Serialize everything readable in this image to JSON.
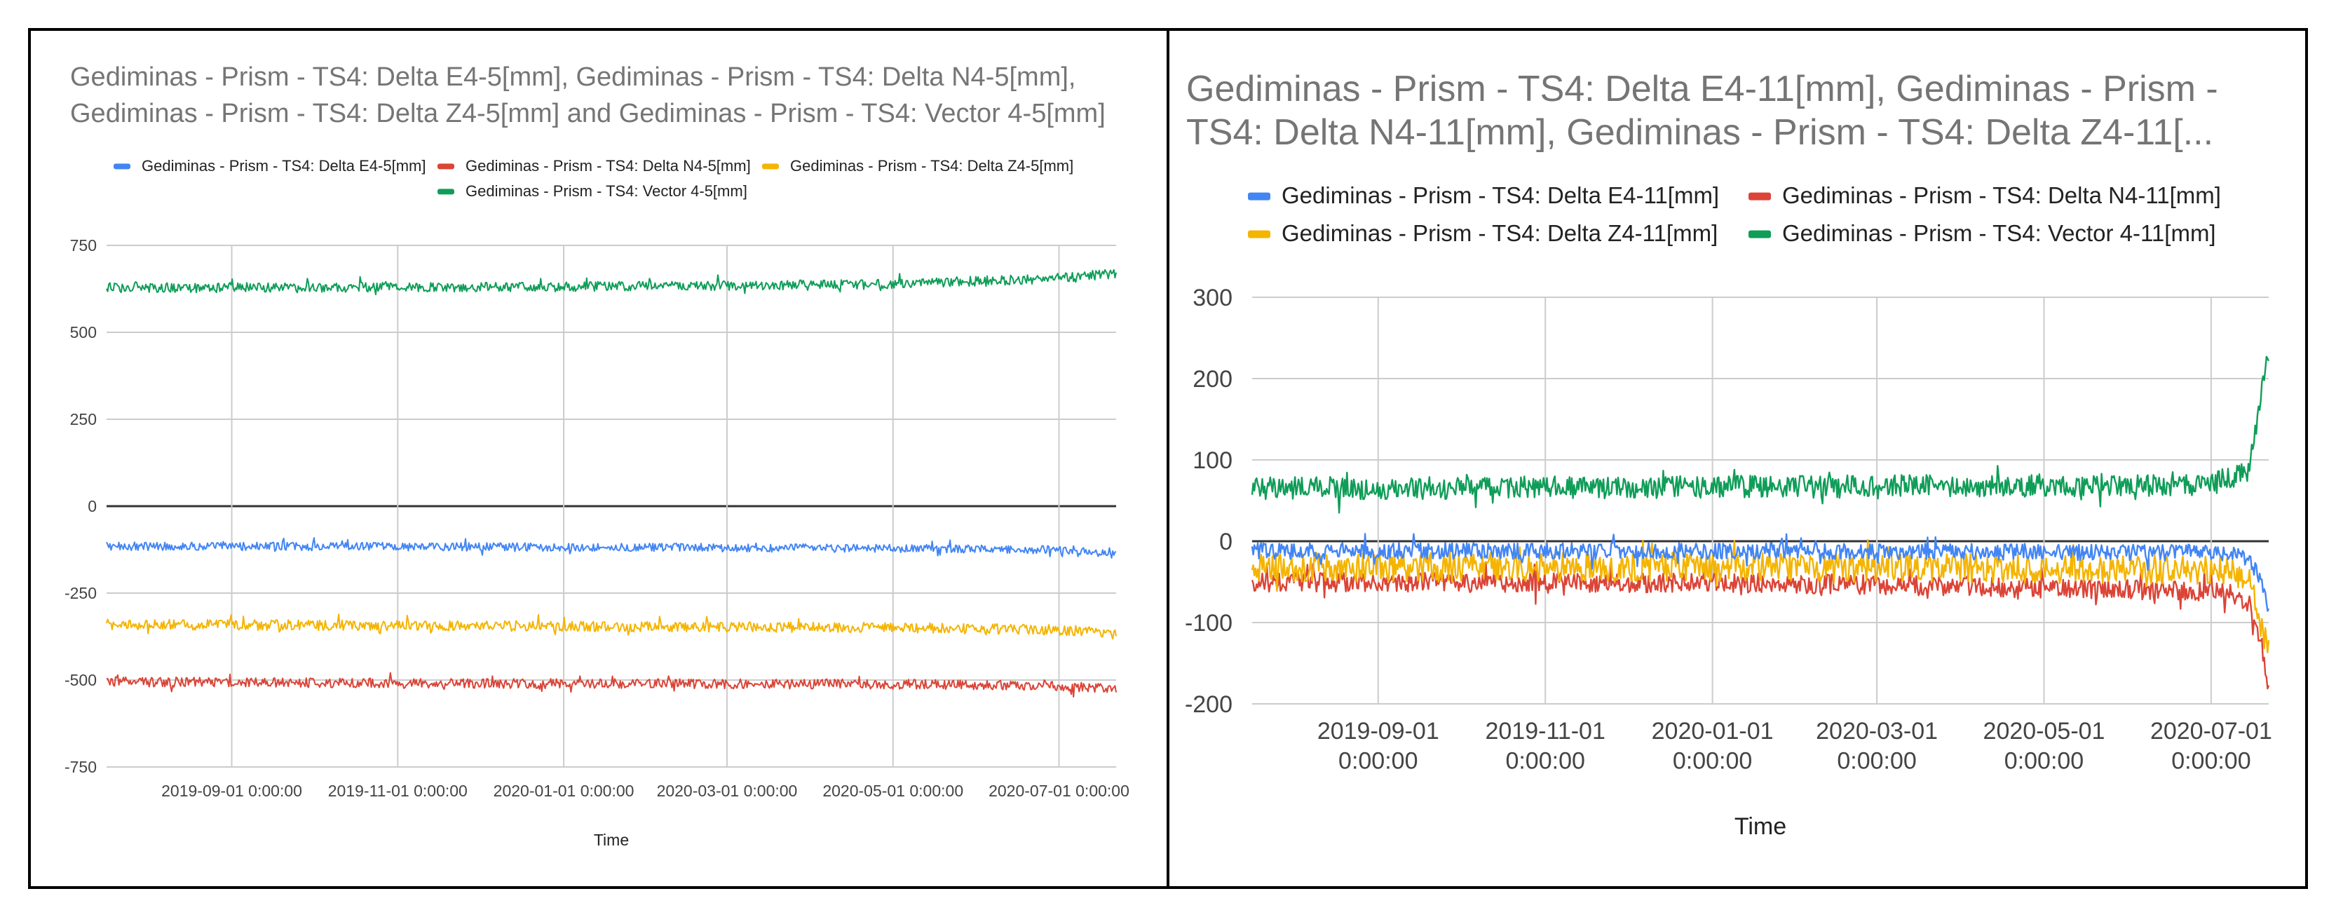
{
  "chart_data": [
    {
      "type": "line",
      "title_lines": [
        "Gediminas - Prism - TS4: Delta E4-5[mm], Gediminas - Prism - TS4: Delta N4-5[mm],",
        "Gediminas - Prism - TS4: Delta Z4-5[mm] and Gediminas - Prism - TS4: Vector 4-5[mm]"
      ],
      "xlabel": "Time",
      "ylabel": "",
      "ylim": [
        -750,
        750
      ],
      "yticks": [
        "750",
        "500",
        "250",
        "0",
        "-250",
        "-500",
        "-750"
      ],
      "ytick_values": [
        750,
        500,
        250,
        0,
        -250,
        -500,
        -750
      ],
      "xlim": [
        "2019-07-17",
        "2020-07-22"
      ],
      "xticks": [
        "2019-09-01 0:00:00",
        "2019-11-01 0:00:00",
        "2020-01-01 0:00:00",
        "2020-03-01 0:00:00",
        "2020-05-01 0:00:00",
        "2020-07-01 0:00:00"
      ],
      "xtick_days": [
        46,
        107,
        168,
        228,
        289,
        350
      ],
      "total_days": 371,
      "series": [
        {
          "name": "Gediminas - Prism - TS4: Delta E4-5[mm]",
          "color": "#4285F4",
          "points": [
            [
              0,
              -115
            ],
            [
              150,
              -117
            ],
            [
              300,
              -122
            ],
            [
              355,
              -126
            ],
            [
              371,
              -140
            ]
          ],
          "noise": 12
        },
        {
          "name": "Gediminas - Prism - TS4: Delta N4-5[mm]",
          "color": "#DB4437",
          "points": [
            [
              0,
              -505
            ],
            [
              150,
              -510
            ],
            [
              300,
              -512
            ],
            [
              355,
              -518
            ],
            [
              371,
              -525
            ]
          ],
          "noise": 14
        },
        {
          "name": "Gediminas - Prism - TS4: Delta Z4-5[mm]",
          "color": "#F4B400",
          "points": [
            [
              0,
              -340
            ],
            [
              150,
              -345
            ],
            [
              300,
              -350
            ],
            [
              355,
              -357
            ],
            [
              371,
              -370
            ]
          ],
          "noise": 15
        },
        {
          "name": "Gediminas - Prism - TS4: Vector 4-5[mm]",
          "color": "#0F9D58",
          "points": [
            [
              0,
              628
            ],
            [
              150,
              630
            ],
            [
              280,
              638
            ],
            [
              340,
              652
            ],
            [
              371,
              668
            ]
          ],
          "noise": 14
        }
      ]
    },
    {
      "type": "line",
      "title_lines": [
        "Gediminas - Prism - TS4: Delta E4-11[mm], Gediminas - Prism -",
        "TS4: Delta N4-11[mm], Gediminas - Prism - TS4: Delta Z4-11[..."
      ],
      "xlabel": "Time",
      "ylabel": "",
      "ylim": [
        -200,
        300
      ],
      "yticks": [
        "300",
        "200",
        "100",
        "0",
        "-100",
        "-200"
      ],
      "ytick_values": [
        300,
        200,
        100,
        0,
        -100,
        -200
      ],
      "xlim": [
        "2019-07-17",
        "2020-07-22"
      ],
      "xticks": [
        "2019-09-01\n0:00:00",
        "2019-11-01\n0:00:00",
        "2020-01-01\n0:00:00",
        "2020-03-01\n0:00:00",
        "2020-05-01\n0:00:00",
        "2020-07-01\n0:00:00"
      ],
      "xtick_days": [
        46,
        107,
        168,
        228,
        289,
        350
      ],
      "total_days": 371,
      "series": [
        {
          "name": "Gediminas - Prism - TS4: Delta E4-11[mm]",
          "color": "#4285F4",
          "points": [
            [
              0,
              -12
            ],
            [
              200,
              -12
            ],
            [
              355,
              -14
            ],
            [
              364,
              -22
            ],
            [
              368,
              -50
            ],
            [
              371,
              -80
            ]
          ],
          "noise": 10
        },
        {
          "name": "Gediminas - Prism - TS4: Delta N4-11[mm]",
          "color": "#DB4437",
          "points": [
            [
              0,
              -50
            ],
            [
              200,
              -52
            ],
            [
              355,
              -62
            ],
            [
              364,
              -75
            ],
            [
              368,
              -130
            ],
            [
              371,
              -180
            ]
          ],
          "noise": 12
        },
        {
          "name": "Gediminas - Prism - TS4: Delta Z4-11[mm]",
          "color": "#F4B400",
          "points": [
            [
              0,
              -32
            ],
            [
              200,
              -32
            ],
            [
              355,
              -35
            ],
            [
              364,
              -50
            ],
            [
              368,
              -100
            ],
            [
              371,
              -135
            ]
          ],
          "noise": 18
        },
        {
          "name": "Gediminas - Prism - TS4: Vector 4-11[mm]",
          "color": "#0F9D58",
          "points": [
            [
              0,
              65
            ],
            [
              200,
              67
            ],
            [
              350,
              70
            ],
            [
              363,
              85
            ],
            [
              366,
              130
            ],
            [
              369,
              200
            ],
            [
              371,
              232
            ]
          ],
          "noise": 14
        }
      ]
    }
  ]
}
